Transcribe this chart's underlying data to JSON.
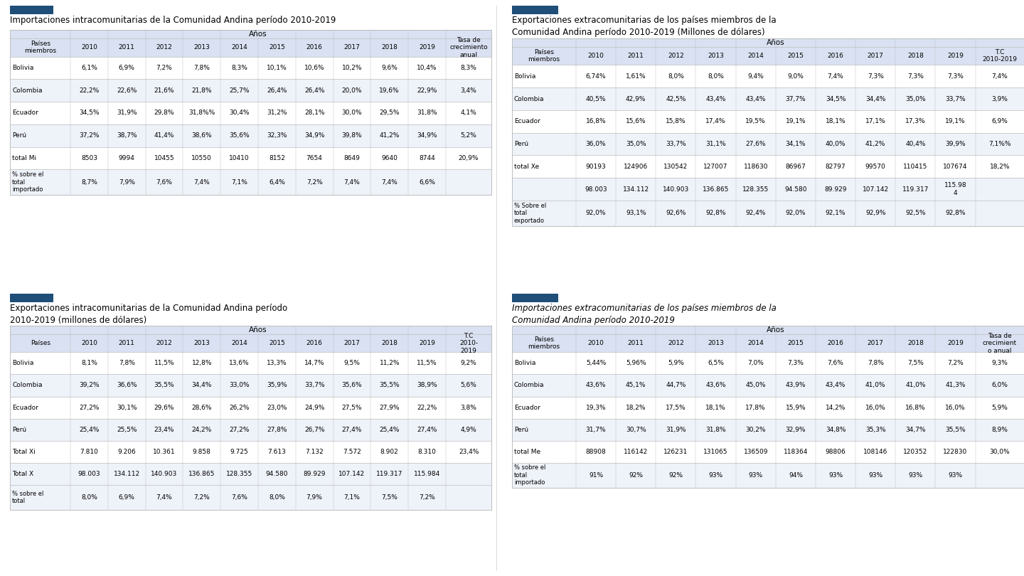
{
  "tables": [
    {
      "title": "Importaciones intracomunitarias de la Comunidad Andina período 2010-2019",
      "title_italic": false,
      "col_header": [
        "Países\nmiembros",
        "2010",
        "2011",
        "2012",
        "2013",
        "2014",
        "2015",
        "2016",
        "2017",
        "2018",
        "2019",
        "Tasa de\ncrecimiento\nanual"
      ],
      "rows": [
        [
          "Bolivia",
          "6,1%",
          "6,9%",
          "7,2%",
          "7,8%",
          "8,3%",
          "10,1%",
          "10,6%",
          "10,2%",
          "9,6%",
          "10,4%",
          "8,3%"
        ],
        [
          "Colombia",
          "22,2%",
          "22,6%",
          "21,6%",
          "21,8%",
          "25,7%",
          "26,4%",
          "26,4%",
          "20,0%",
          "19,6%",
          "22,9%",
          "3,4%"
        ],
        [
          "Ecuador",
          "34,5%",
          "31,9%",
          "29,8%",
          "31,8%%",
          "30,4%",
          "31,2%",
          "28,1%",
          "30,0%",
          "29,5%",
          "31,8%",
          "4,1%"
        ],
        [
          "Perú",
          "37,2%",
          "38,7%",
          "41,4%",
          "38,6%",
          "35,6%",
          "32,3%",
          "34,9%",
          "39,8%",
          "41,2%",
          "34,9%",
          "5,2%"
        ],
        [
          "total Mi",
          "8503",
          "9994",
          "10455",
          "10550",
          "10410",
          "8152",
          "7654",
          "8649",
          "9640",
          "8744",
          "20,9%"
        ]
      ],
      "footer_label": "% sobre el\ntotal\nimportado",
      "footer_values": [
        "8,7%",
        "7,9%",
        "7,6%",
        "7,4%",
        "7,1%",
        "6,4%",
        "7,2%",
        "7,4%",
        "7,4%",
        "6,6%",
        ""
      ]
    },
    {
      "title": "Exportaciones extracomunitarias de los países miembros de la\nComunidad Andina período 2010-2019 (Millones de dólares)",
      "title_italic": false,
      "col_header": [
        "Países\nmiembros",
        "2010",
        "2011",
        "2012",
        "2013",
        "2014",
        "2015",
        "2016",
        "2017",
        "2018",
        "2019",
        "T.C\n2010-2019"
      ],
      "rows": [
        [
          "Bolivia",
          "6,74%",
          "1,61%",
          "8,0%",
          "8,0%",
          "9,4%",
          "9,0%",
          "7,4%",
          "7,3%",
          "7,3%",
          "7,3%",
          "7,4%"
        ],
        [
          "Colombia",
          "40,5%",
          "42,9%",
          "42,5%",
          "43,4%",
          "43,4%",
          "37,7%",
          "34,5%",
          "34,4%",
          "35,0%",
          "33,7%",
          "3,9%"
        ],
        [
          "Ecuador",
          "16,8%",
          "15,6%",
          "15,8%",
          "17,4%",
          "19,5%",
          "19,1%",
          "18,1%",
          "17,1%",
          "17,3%",
          "19,1%",
          "6,9%"
        ],
        [
          "Perú",
          "36,0%",
          "35,0%",
          "33,7%",
          "31,1%",
          "27,6%",
          "34,1%",
          "40,0%",
          "41,2%",
          "40,4%",
          "39,9%",
          "7,1%%"
        ],
        [
          "total Xe",
          "90193",
          "124906",
          "130542",
          "127007",
          "118630",
          "86967",
          "82797",
          "99570",
          "110415",
          "107674",
          "18,2%"
        ],
        [
          "",
          "98.003",
          "134.112",
          "140.903",
          "136.865",
          "128.355",
          "94.580",
          "89.929",
          "107.142",
          "119.317",
          "115.98\n4",
          ""
        ]
      ],
      "footer_label": "% Sobre el\ntotal\nexportado",
      "footer_values": [
        "92,0%",
        "93,1%",
        "92,6%",
        "92,8%",
        "92,4%",
        "92,0%",
        "92,1%",
        "92,9%",
        "92,5%",
        "92,8%",
        ""
      ]
    },
    {
      "title": "Exportaciones intracomunitarias de la Comunidad Andina período\n2010-2019 (millones de dólares)",
      "title_italic": false,
      "col_header": [
        "Países",
        "2010",
        "2011",
        "2012",
        "2013",
        "2014",
        "2015",
        "2016",
        "2017",
        "2018",
        "2019",
        "T.C\n2010-\n2019"
      ],
      "rows": [
        [
          "Bolivia",
          "8,1%",
          "7,8%",
          "11,5%",
          "12,8%",
          "13,6%",
          "13,3%",
          "14,7%",
          "9,5%",
          "11,2%",
          "11,5%",
          "9,2%"
        ],
        [
          "Colombia",
          "39,2%",
          "36,6%",
          "35,5%",
          "34,4%",
          "33,0%",
          "35,9%",
          "33,7%",
          "35,6%",
          "35,5%",
          "38,9%",
          "5,6%"
        ],
        [
          "Ecuador",
          "27,2%",
          "30,1%",
          "29,6%",
          "28,6%",
          "26,2%",
          "23,0%",
          "24,9%",
          "27,5%",
          "27,9%",
          "22,2%",
          "3,8%"
        ],
        [
          "Perú",
          "25,4%",
          "25,5%",
          "23,4%",
          "24,2%",
          "27,2%",
          "27,8%",
          "26,7%",
          "27,4%",
          "25,4%",
          "27,4%",
          "4,9%"
        ],
        [
          "Total Xi",
          "7.810",
          "9.206",
          "10.361",
          "9.858",
          "9.725",
          "7.613",
          "7.132",
          "7.572",
          "8.902",
          "8.310",
          "23,4%"
        ],
        [
          "Total X",
          "98.003",
          "134.112",
          "140.903",
          "136.865",
          "128.355",
          "94.580",
          "89.929",
          "107.142",
          "119.317",
          "115.984",
          ""
        ]
      ],
      "footer_label": "% sobre el\ntotal",
      "footer_values": [
        "8,0%",
        "6,9%",
        "7,4%",
        "7,2%",
        "7,6%",
        "8,0%",
        "7,9%",
        "7,1%",
        "7,5%",
        "7,2%",
        ""
      ]
    },
    {
      "title": "Importaciones extracomunitarias de los países miembros de la\nComunidad Andina período 2010-2019",
      "title_italic": true,
      "col_header": [
        "Países\nmiembros",
        "2010",
        "2011",
        "2012",
        "2013",
        "2014",
        "2015",
        "2016",
        "2017",
        "2018",
        "2019",
        "Tasa de\ncrecimient\no anual"
      ],
      "rows": [
        [
          "Bolivia",
          "5,44%",
          "5,96%",
          "5,9%",
          "6,5%",
          "7,0%",
          "7,3%",
          "7,6%",
          "7,8%",
          "7,5%",
          "7,2%",
          "9,3%"
        ],
        [
          "Colombia",
          "43,6%",
          "45,1%",
          "44,7%",
          "43,6%",
          "45,0%",
          "43,9%",
          "43,4%",
          "41,0%",
          "41,0%",
          "41,3%",
          "6,0%"
        ],
        [
          "Ecuador",
          "19,3%",
          "18,2%",
          "17,5%",
          "18,1%",
          "17,8%",
          "15,9%",
          "14,2%",
          "16,0%",
          "16,8%",
          "16,0%",
          "5,9%"
        ],
        [
          "Perú",
          "31,7%",
          "30,7%",
          "31,9%",
          "31,8%",
          "30,2%",
          "32,9%",
          "34,8%",
          "35,3%",
          "34,7%",
          "35,5%",
          "8,9%"
        ],
        [
          "total Me",
          "88908",
          "116142",
          "126231",
          "131065",
          "136509",
          "118364",
          "98806",
          "108146",
          "120352",
          "122830",
          "30,0%"
        ]
      ],
      "footer_label": "% sobre el\ntotal\nimportado",
      "footer_values": [
        "91%",
        "92%",
        "92%",
        "93%",
        "93%",
        "94%",
        "93%",
        "93%",
        "93%",
        "93%",
        ""
      ]
    }
  ],
  "accent_color": "#1F4E79",
  "header_bg": "#D9E1F2",
  "alt_row_bg": "#EEF2F9",
  "white": "#FFFFFF",
  "border_color": "#BBBBBB",
  "text_color": "#000000",
  "bg_color": "#FFFFFF",
  "divider_color": "#CCCCCC"
}
